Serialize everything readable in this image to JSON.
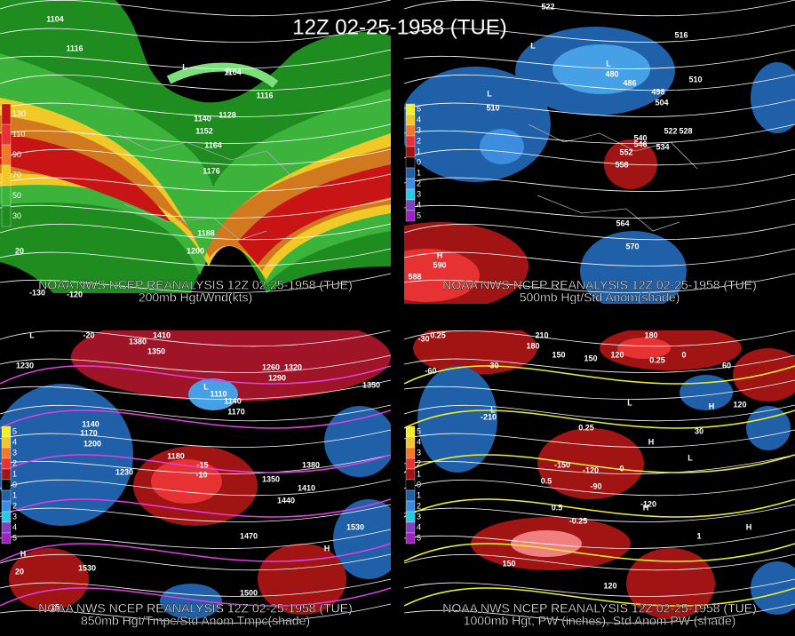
{
  "title": "12Z 02-25-1958 (TUE)",
  "panels": [
    {
      "source": "NOAA NWS NCEP REANALYSIS 12Z 02-25-1958 (TUE)",
      "caption": "200mb Hgt/Wnd(kts)",
      "colorbar": [
        "130",
        "110",
        "90",
        "70",
        "50",
        "30"
      ],
      "labels": [
        "1104",
        "1116",
        "1104",
        "1116",
        "1128",
        "1140",
        "1152",
        "1164",
        "1176",
        "1188",
        "1200",
        "20",
        "-120",
        "-130",
        "L",
        "L"
      ]
    },
    {
      "source": "NOAA NWS NCEP REANALYSIS 12Z 02-25-1958 (TUE)",
      "caption": "500mb Hgt/Std Anom(shade)",
      "colorbar": [
        "5",
        "4",
        "3",
        "2",
        "1",
        "0",
        "1",
        "2",
        "3",
        "4",
        "5"
      ],
      "labels": [
        "522",
        "516",
        "510",
        "486",
        "480",
        "498",
        "504",
        "528",
        "522",
        "534",
        "540",
        "546",
        "552",
        "558",
        "564",
        "570",
        "588",
        "590",
        "510",
        "L",
        "L",
        "L",
        "H"
      ]
    },
    {
      "source": "NOAA NWS NCEP REANALYSIS 12Z 02-25-1958 (TUE)",
      "caption": "850mb Hgt/Tmpc/Std Anom Tmpc(shade)",
      "colorbar": [
        "5",
        "4",
        "3",
        "2",
        "1",
        "0",
        "1",
        "2",
        "3",
        "4",
        "5"
      ],
      "labels": [
        "-20",
        "1380",
        "1350",
        "1230",
        "1410",
        "1260",
        "1320",
        "1290",
        "1350",
        "1110",
        "1140",
        "1170",
        "1140",
        "1170",
        "1200",
        "1230",
        "1180",
        "-15",
        "-10",
        "1350",
        "1380",
        "1410",
        "1440",
        "1470",
        "1530",
        "1530",
        "1500",
        "15",
        "20",
        "L",
        "L",
        "H",
        "H"
      ]
    },
    {
      "source": "NOAA NWS NCEP REANALYSIS 12Z 02-25-1958 (TUE)",
      "caption": "1000mb Hgt, PW (inches), Std Anom PW (shade)",
      "colorbar": [
        "5",
        "4",
        "3",
        "2",
        "1",
        "0",
        "1",
        "2",
        "3",
        "4",
        "5"
      ],
      "labels": [
        "210",
        "180",
        "150",
        "180",
        "150",
        "120",
        "-30",
        "0.25",
        "0.25",
        "0",
        "60",
        "-60",
        "-30",
        "-210",
        "0.25",
        "0.5",
        "-150",
        "-120",
        "-90",
        "0",
        "30",
        "0.5",
        "-0.25",
        "150",
        "120",
        "-120",
        "1",
        "120",
        "L",
        "L",
        "H",
        "L",
        "H",
        "H",
        "H"
      ]
    }
  ]
}
